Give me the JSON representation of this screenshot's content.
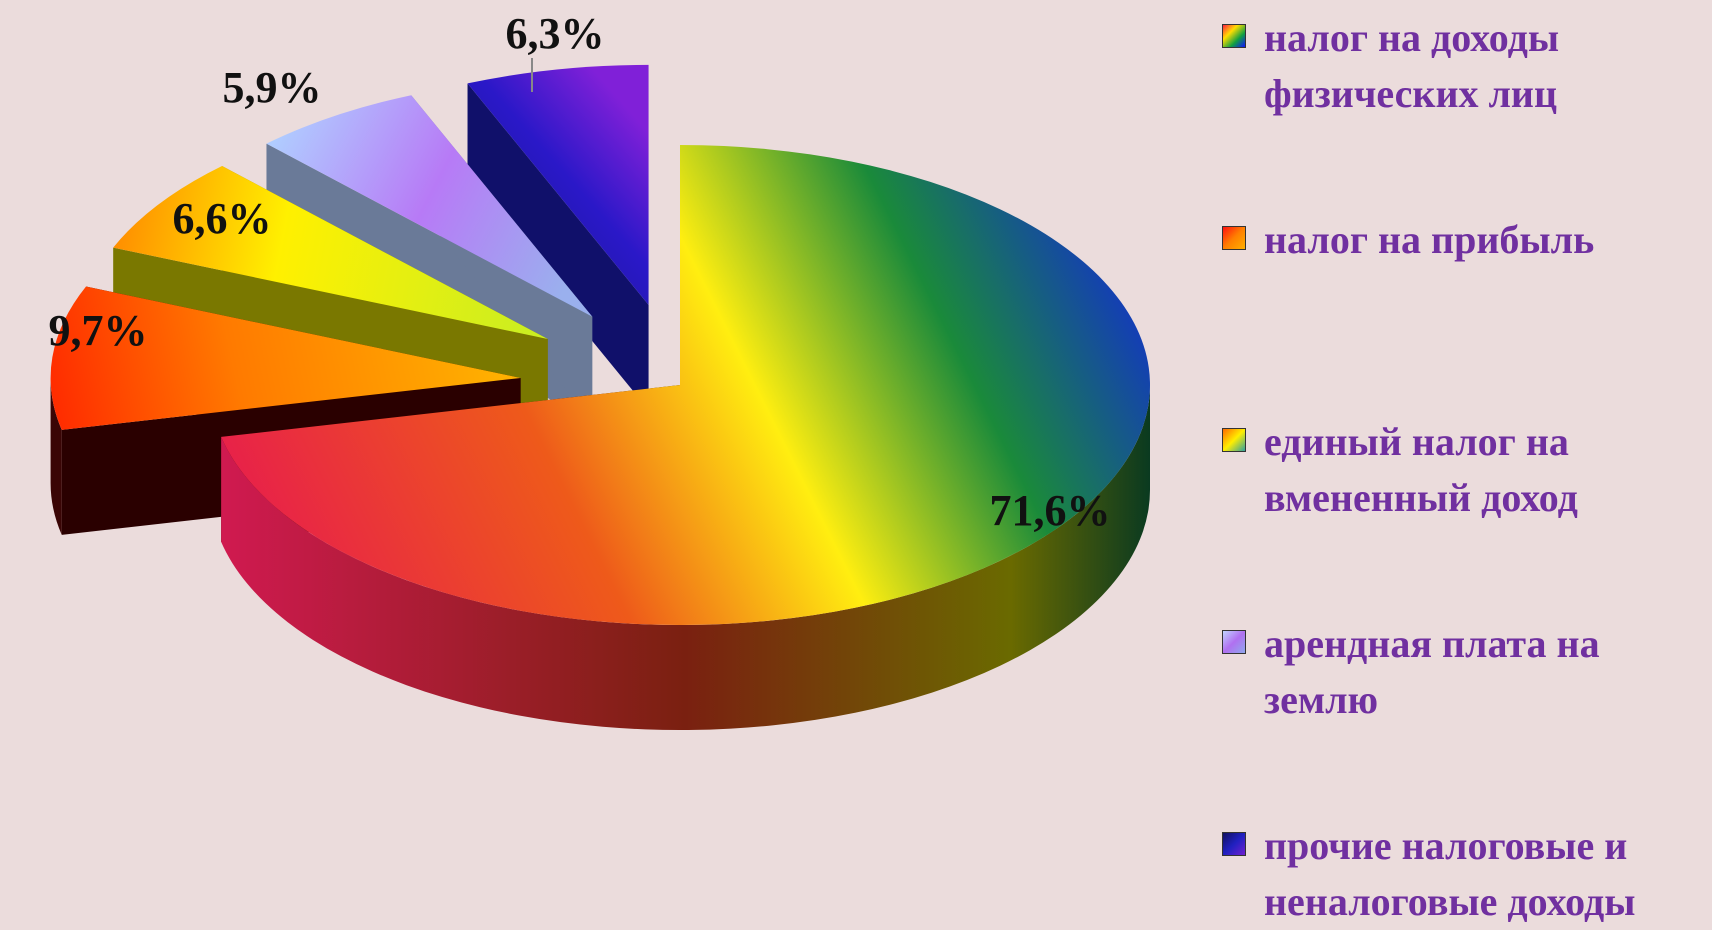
{
  "chart_data": {
    "type": "pie",
    "title": "",
    "categories": [
      "налог на доходы физических лиц",
      "налог на прибыль",
      "единый налог на вмененный доход",
      "арендная плата на землю",
      "прочие налоговые и неналоговые доходы"
    ],
    "values": [
      71.6,
      9.7,
      6.6,
      5.9,
      6.3
    ],
    "data_labels": [
      "71,6%",
      "9,7%",
      "6,6%",
      "5,9%",
      "6,3%"
    ],
    "legend_position": "right",
    "exploded": true,
    "three_d": true,
    "slice_fills": [
      "rainbow gradient (red-orange-yellow-green-blue)",
      "red-orange gradient",
      "yellow-orange gradient",
      "lavender-violet gradient",
      "navy-violet gradient"
    ]
  },
  "legend": {
    "items": [
      {
        "label": "налог на доходы физических лиц"
      },
      {
        "label": "налог на прибыль"
      },
      {
        "label": "единый налог на вмененный доход"
      },
      {
        "label": "арендная плата на землю"
      },
      {
        "label": "прочие налоговые и неналоговые доходы"
      }
    ]
  },
  "colors": {
    "background": "#ebdcdc",
    "legend_text": "#7030a0",
    "label_text": "#111111"
  }
}
